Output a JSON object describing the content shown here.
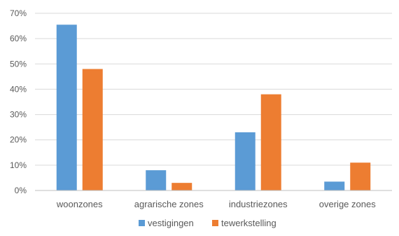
{
  "chart_data": {
    "type": "bar",
    "title": "",
    "xlabel": "",
    "ylabel": "",
    "categories": [
      "woonzones",
      "agrarische zones",
      "industriezones",
      "overige zones"
    ],
    "series": [
      {
        "name": "vestigingen",
        "color": "#5b9bd5",
        "values": [
          65.5,
          8,
          23,
          3.5
        ]
      },
      {
        "name": "tewerkstelling",
        "color": "#ed7d31",
        "values": [
          48,
          3,
          38,
          11
        ]
      }
    ],
    "ylim": [
      0,
      70
    ],
    "yticks": [
      0,
      10,
      20,
      30,
      40,
      50,
      60,
      70
    ],
    "ytick_labels": [
      "0%",
      "10%",
      "20%",
      "30%",
      "40%",
      "50%",
      "60%",
      "70%"
    ],
    "grid": true,
    "legend_position": "bottom"
  }
}
